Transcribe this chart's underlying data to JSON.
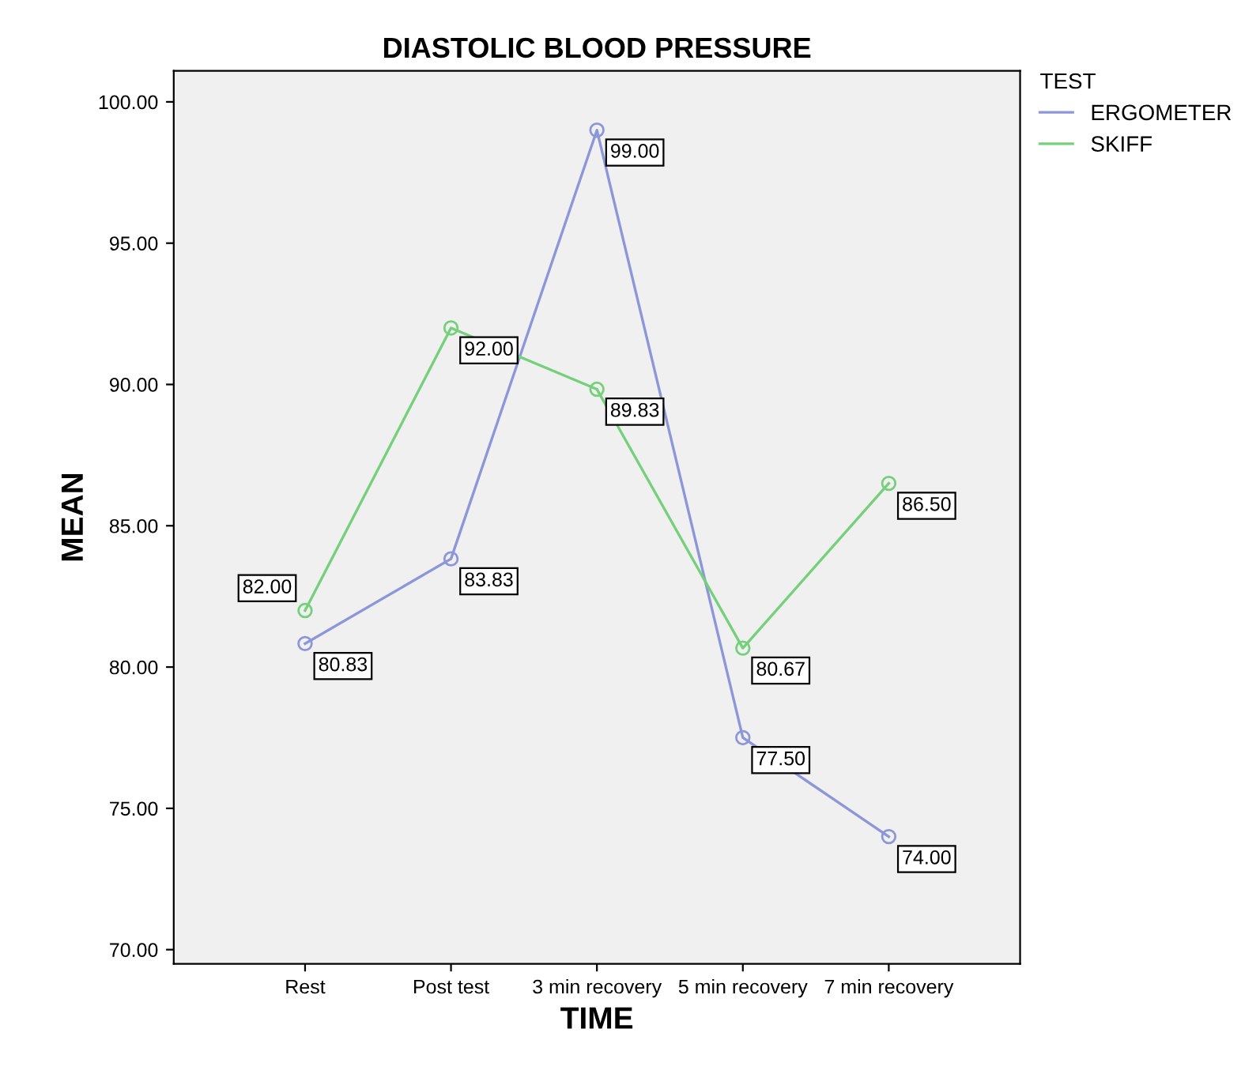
{
  "chart_data": {
    "type": "line",
    "title": "DIASTOLIC BLOOD PRESSURE",
    "xlabel": "TIME",
    "ylabel": "MEAN",
    "legend_title": "TEST",
    "categories": [
      "Rest",
      "Post test",
      "3 min recovery",
      "5 min recovery",
      "7 min recovery"
    ],
    "series": [
      {
        "name": "ERGOMETER",
        "color": "#8c96d8",
        "values": [
          80.83,
          83.83,
          99.0,
          77.5,
          74.0
        ],
        "value_labels": [
          "80.83",
          "83.83",
          "99.00",
          "77.50",
          "74.00"
        ]
      },
      {
        "name": "SKIFF",
        "color": "#74d07a",
        "values": [
          82.0,
          92.0,
          89.83,
          80.67,
          86.5
        ],
        "value_labels": [
          "82.00",
          "92.00",
          "89.83",
          "80.67",
          "86.50"
        ]
      }
    ],
    "ylim": [
      69.5,
      101.1
    ],
    "yticks": [
      {
        "value": 70,
        "label": "70.00"
      },
      {
        "value": 75,
        "label": "75.00"
      },
      {
        "value": 80,
        "label": "80.00"
      },
      {
        "value": 85,
        "label": "85.00"
      },
      {
        "value": 90,
        "label": "90.00"
      },
      {
        "value": 95,
        "label": "95.00"
      },
      {
        "value": 100,
        "label": "100.00"
      }
    ],
    "marker": "circle",
    "line_style": "solid",
    "grid": false,
    "legend": "top right"
  }
}
